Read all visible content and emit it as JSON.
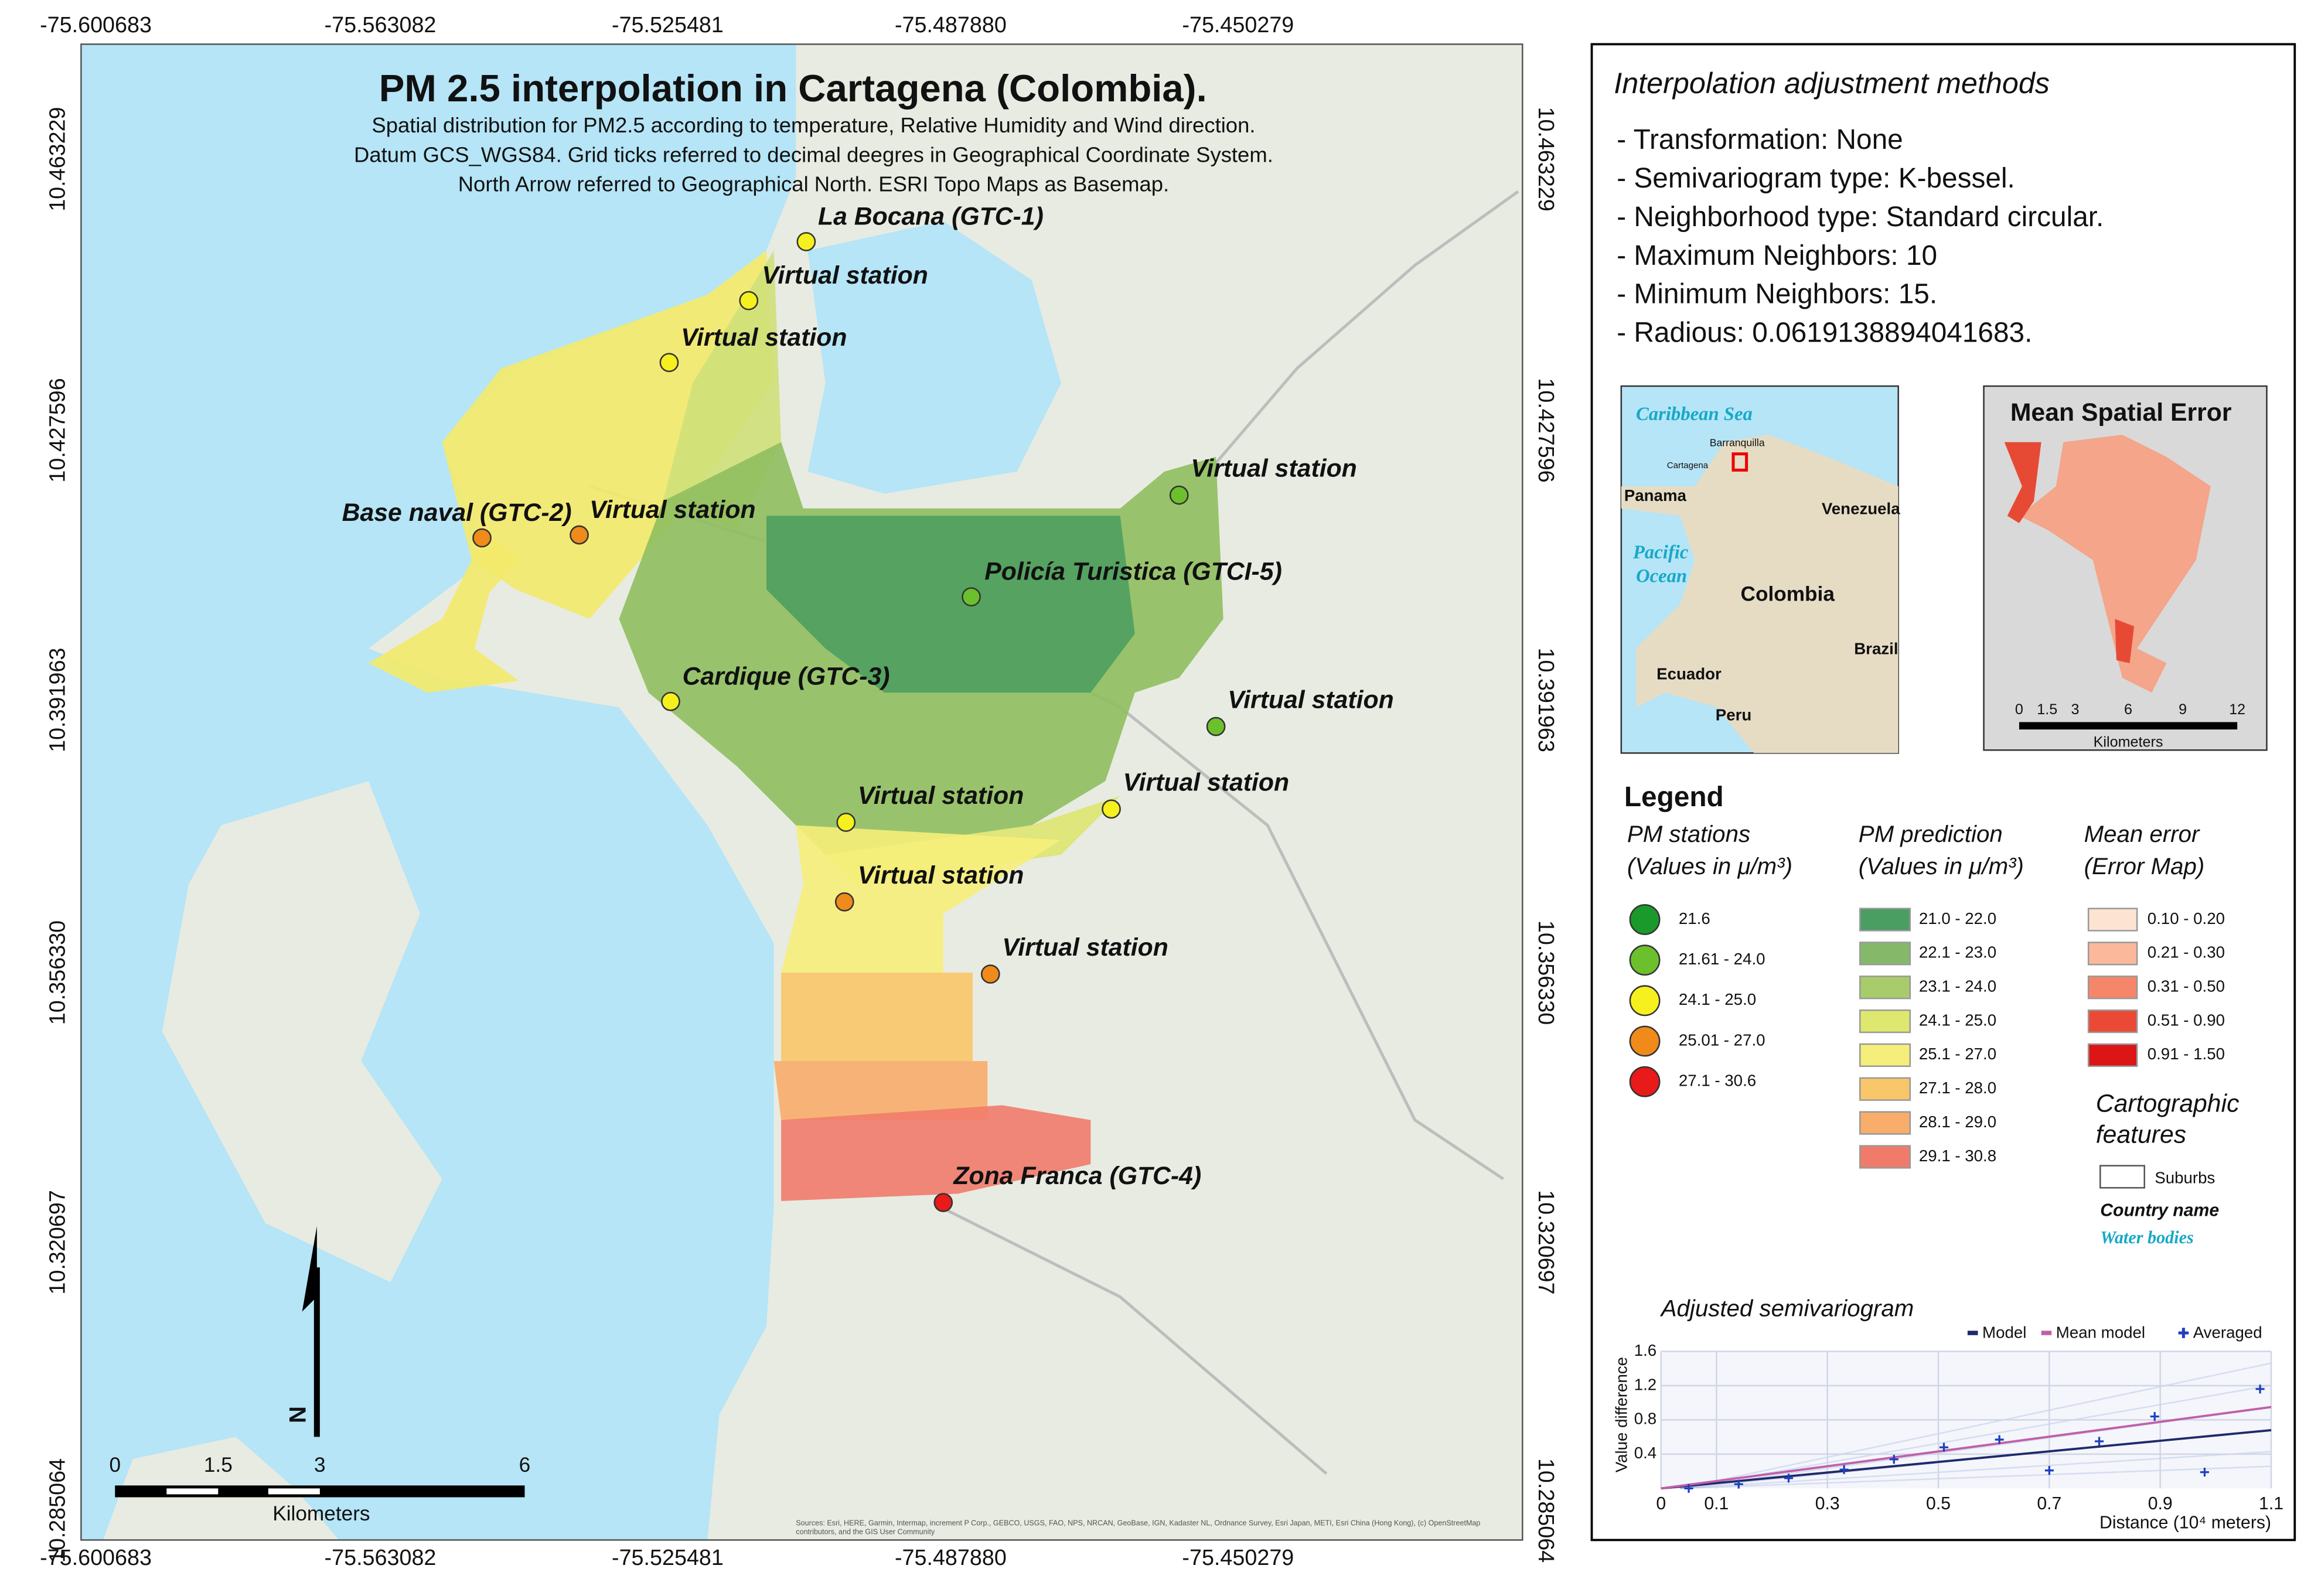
{
  "map": {
    "title": "PM 2.5  interpolation in Cartagena (Colombia).",
    "subtitle": [
      "Spatial distribution for  PM2.5 according to temperature, Relative Humidity and Wind direction.",
      "Datum GCS_WGS84. Grid ticks referred to decimal deegres in Geographical Coordinate System.",
      "North Arrow referred to Geographical North. ESRI Topo Maps as Basemap."
    ],
    "longitudes": [
      "-75.600683",
      "-75.563082",
      "-75.525481",
      "-75.487880",
      "-75.450279"
    ],
    "latitudes": [
      "10.463229",
      "10.427596",
      "10.391963",
      "10.356330",
      "10.320697",
      "10.285064"
    ],
    "stations": [
      "La Bocana (GTC-1)",
      "Virtual station",
      "Virtual station",
      "Virtual station",
      "Base naval (GTC-2)",
      "Virtual station",
      "Policía Turistica (GTCI-5)",
      "Cardique (GTC-3)",
      "Virtual station",
      "Virtual station",
      "Virtual station",
      "Virtual station",
      "Virtual station",
      "Zona Franca (GTC-4)"
    ],
    "north_arrow": "N",
    "scale_bar": {
      "ticks": [
        "0",
        "1.5",
        "3",
        "6"
      ],
      "unit": "Kilometers"
    },
    "attribution": "Sources: Esri, HERE, Garmin, Intermap, increment P Corp., GEBCO, USGS, FAO, NPS, NRCAN, GeoBase, IGN, Kadaster NL, Ordnance Survey, Esri Japan, METI, Esri China (Hong Kong), (c) OpenStreetMap contributors, and the GIS User Community"
  },
  "panel": {
    "methods_title": "Interpolation adjustment methods",
    "methods": [
      "- Transformation: None",
      "- Semivariogram type: K-bessel.",
      "- Neighborhood type: Standard circular.",
      "- Maximum Neighbors: 10",
      "- Minimum Neighbors: 15.",
      "- Radious: 0.0619138894041683."
    ],
    "location_inset": {
      "labels": [
        "Caribbean Sea",
        "Barranquilla",
        "Cartagena",
        "Panama",
        "Venezuela",
        "Pacific",
        "Ocean",
        "Colombia",
        "Brazil",
        "Ecuador",
        "Peru"
      ]
    },
    "error_inset": {
      "title": "Mean Spatial Error",
      "scale_ticks": [
        "0",
        "1.5",
        "3",
        "6",
        "9",
        "12"
      ],
      "unit": "Kilometers"
    },
    "legend": {
      "title": "Legend",
      "stations": {
        "title": "PM stations",
        "units": "(Values in μ/m³)",
        "classes": [
          "21.6",
          "21.61 - 24.0",
          "24.1 - 25.0",
          "25.01 - 27.0",
          "27.1 - 30.6"
        ]
      },
      "prediction": {
        "title": "PM prediction",
        "units": "(Values in μ/m³)",
        "classes": [
          "21.0 - 22.0",
          "22.1 - 23.0",
          "23.1 - 24.0",
          "24.1 - 25.0",
          "25.1 - 27.0",
          "27.1 - 28.0",
          "28.1 - 29.0",
          "29.1 - 30.8"
        ]
      },
      "error": {
        "title": "Mean error",
        "subtitle": "(Error Map)",
        "classes": [
          "0.10 - 0.20",
          "0.21 - 0.30",
          "0.31 - 0.50",
          "0.51 - 0.90",
          "0.91 - 1.50"
        ]
      },
      "cartographic": {
        "title": [
          "Cartographic",
          "features"
        ],
        "items": [
          "Suburbs",
          "Country name",
          "Water bodies"
        ]
      }
    }
  },
  "chart_data": {
    "type": "scatter",
    "title": "Adjusted semivariogram",
    "x_label": "Distance (10⁴ meters)",
    "y_label": "Value difference",
    "xlim": [
      0,
      1.1
    ],
    "ylim": [
      0,
      1.6
    ],
    "xticks": [
      0,
      0.1,
      0.3,
      0.5,
      0.7,
      0.9,
      1.1
    ],
    "yticks": [
      0.4,
      0.8,
      1.2,
      1.6
    ],
    "grid": true,
    "series": [
      {
        "name": "Model",
        "color": "#1f2a6b",
        "mode": "line",
        "x": [
          0,
          1.1
        ],
        "values": [
          0,
          0.68
        ]
      },
      {
        "name": "Mean model",
        "color": "#c060a8",
        "mode": "line",
        "x": [
          0,
          1.1
        ],
        "values": [
          0,
          0.95
        ]
      },
      {
        "name": "Averaged",
        "color": "#1f3fbf",
        "mode": "marker",
        "x": [
          0.05,
          0.14,
          0.23,
          0.33,
          0.42,
          0.51,
          0.61,
          0.7,
          0.79,
          0.89,
          0.98,
          1.08
        ],
        "values": [
          0,
          0.05,
          0.12,
          0.22,
          0.34,
          0.48,
          0.57,
          0.21,
          0.55,
          0.84,
          0.19,
          1.16
        ]
      }
    ]
  }
}
